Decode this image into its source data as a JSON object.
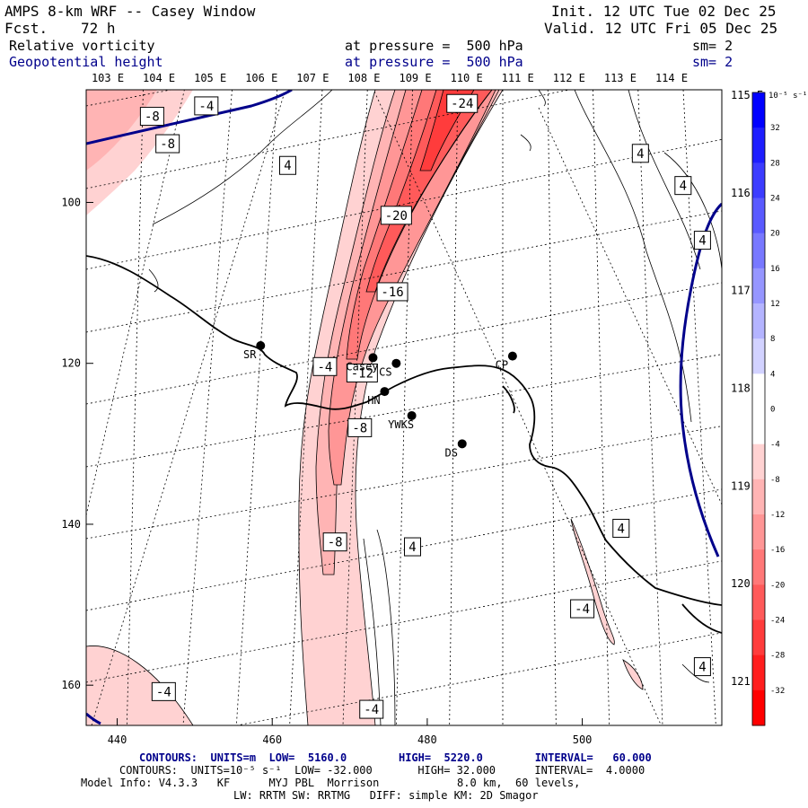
{
  "header": {
    "title": "AMPS 8-km WRF -- Casey Window",
    "fcst_label": "Fcst.",
    "fcst_value": "72 h",
    "init": "Init. 12 UTC Tue 02 Dec 25",
    "valid": "Valid. 12 UTC Fri 05 Dec 25",
    "field1_name": "Relative vorticity",
    "field1_level": "at pressure =  500 hPa",
    "field1_sm": "sm= 2",
    "field2_name": "Geopotential height",
    "field2_level": "at pressure =  500 hPa",
    "field2_sm": "sm= 2"
  },
  "footer": {
    "contours_height": "CONTOURS:  UNITS=m  LOW=  5160.0        HIGH=  5220.0        INTERVAL=   60.000",
    "contours_vort": "CONTOURS:  UNITS=10⁻⁵ s⁻¹  LOW= -32.000       HIGH= 32.000      INTERVAL=  4.0000",
    "model_info": "Model Info: V4.3.3   KF      MYJ PBL  Morrison            8.0 km,  60 levels,",
    "model_info2": "LW: RRTM SW: RRTMG   DIFF: simple KM: 2D Smagor"
  },
  "colors": {
    "height_contour": "#00008b",
    "negative_vorticity": "#ff0000",
    "positive_vorticity": "#0000ff"
  },
  "chart_data": {
    "type": "contour-map",
    "x_axis": {
      "ticks": [
        440,
        460,
        480,
        500
      ],
      "range": [
        436,
        518
      ]
    },
    "y_axis": {
      "ticks": [
        100,
        120,
        140,
        160
      ],
      "range": [
        86,
        165
      ]
    },
    "longitude_labels_top": [
      "103 E",
      "104 E",
      "105 E",
      "106 E",
      "107 E",
      "108 E",
      "109 E",
      "110 E",
      "111 E",
      "112 E",
      "113 E",
      "114 E"
    ],
    "longitude_labels_right": [
      "115 E",
      "116 E",
      "117 E",
      "118 E",
      "119 E",
      "120 E",
      "121 E"
    ],
    "colorbar": {
      "unit": "10⁻⁵ s⁻¹",
      "labels": [
        32,
        28,
        24,
        20,
        16,
        12,
        8,
        4,
        0,
        -4,
        -8,
        -12,
        -16,
        -20,
        -24,
        -28,
        -32
      ],
      "colors": [
        "#0000ff",
        "#1e1eff",
        "#3c3cff",
        "#5a5aff",
        "#7878ff",
        "#9696ff",
        "#b4b4ff",
        "#d2d2ff",
        "#ffffff",
        "#ffffff",
        "#ffd2d2",
        "#ffb4b4",
        "#ff9696",
        "#ff7878",
        "#ff5a5a",
        "#ff3c3c",
        "#ff1e1e",
        "#ff0000"
      ]
    },
    "contour_labels": [
      {
        "text": "-8",
        "x": 444.5,
        "y": 89.3
      },
      {
        "text": "-4",
        "x": 451.5,
        "y": 88.0
      },
      {
        "text": "-8",
        "x": 446.5,
        "y": 92.7
      },
      {
        "text": "4",
        "x": 462.0,
        "y": 95.4
      },
      {
        "text": "-24",
        "x": 484.5,
        "y": 87.7
      },
      {
        "text": "4",
        "x": 507.5,
        "y": 93.9
      },
      {
        "text": "4",
        "x": 513.0,
        "y": 97.9
      },
      {
        "text": "-20",
        "x": 476.0,
        "y": 101.6
      },
      {
        "text": "4",
        "x": 515.5,
        "y": 104.7
      },
      {
        "text": "-16",
        "x": 475.5,
        "y": 111.1
      },
      {
        "text": "-4",
        "x": 466.8,
        "y": 120.4
      },
      {
        "text": "-12",
        "x": 471.6,
        "y": 121.2
      },
      {
        "text": "-8",
        "x": 471.3,
        "y": 128.0
      },
      {
        "text": "4",
        "x": 505.0,
        "y": 140.5
      },
      {
        "text": "-8",
        "x": 468.1,
        "y": 142.2
      },
      {
        "text": "4",
        "x": 478.1,
        "y": 142.8
      },
      {
        "text": "-4",
        "x": 500.0,
        "y": 150.5
      },
      {
        "text": "4",
        "x": 515.5,
        "y": 157.7
      },
      {
        "text": "-4",
        "x": 446.0,
        "y": 160.8
      },
      {
        "text": "-4",
        "x": 472.8,
        "y": 163.0
      }
    ],
    "stations": [
      {
        "label": "SR",
        "x": 458.5,
        "y": 117.8
      },
      {
        "label": "Casey",
        "x": 473.0,
        "y": 119.3
      },
      {
        "label": "CS",
        "x": 476.0,
        "y": 120.0
      },
      {
        "label": "CP",
        "x": 491.0,
        "y": 119.1
      },
      {
        "label": "HN",
        "x": 474.5,
        "y": 123.5
      },
      {
        "label": "YWKS",
        "x": 478.0,
        "y": 126.5
      },
      {
        "label": "DS",
        "x": 484.5,
        "y": 130.0
      }
    ]
  }
}
